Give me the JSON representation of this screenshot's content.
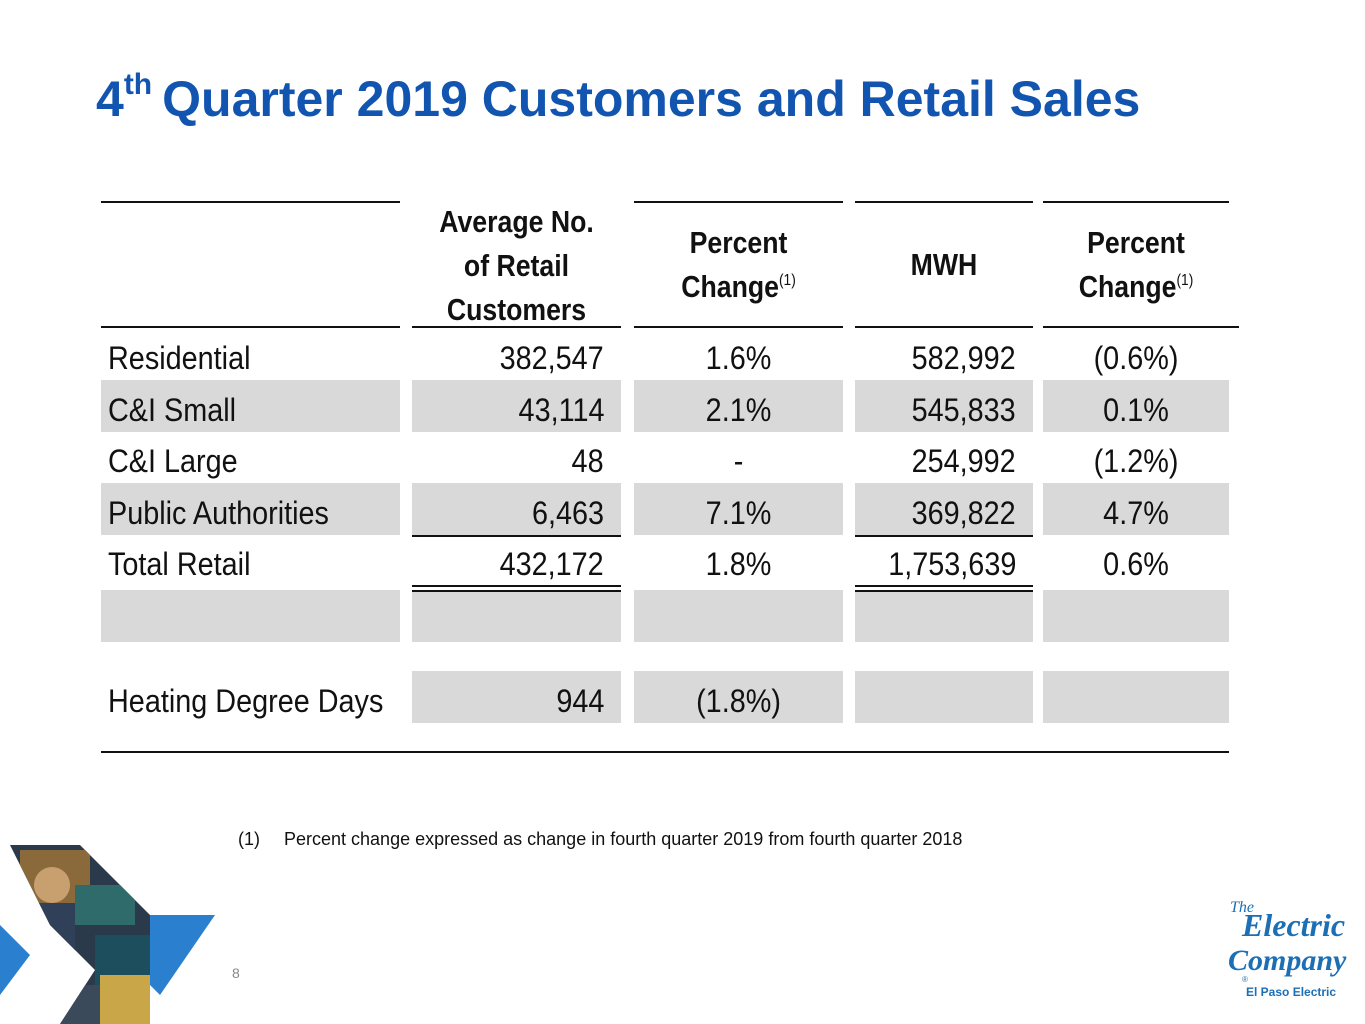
{
  "title": {
    "sup": "th",
    "number": "4",
    "text": "Quarter 2019 Customers and Retail Sales"
  },
  "headers": {
    "customers": [
      "Average No.",
      "of Retail",
      "Customers"
    ],
    "pct1": [
      "Percent",
      "Change"
    ],
    "pct1_note": "(1)",
    "mwh": "MWH",
    "pct2": [
      "Percent",
      "Change"
    ],
    "pct2_note": "(1)"
  },
  "rows": [
    {
      "label": "Residential",
      "customers": "382,547",
      "pct1": "1.6%",
      "mwh": "582,992",
      "pct2": "(0.6%)"
    },
    {
      "label": "C&I Small",
      "customers": "43,114",
      "pct1": "2.1%",
      "mwh": "545,833",
      "pct2": "0.1%"
    },
    {
      "label": "C&I Large",
      "customers": "48",
      "pct1": "-",
      "mwh": "254,992",
      "pct2": "(1.2%)"
    },
    {
      "label": "Public Authorities",
      "customers": "6,463",
      "pct1": "7.1%",
      "mwh": "369,822",
      "pct2": "4.7%"
    },
    {
      "label": "Total Retail",
      "customers": "432,172",
      "pct1": "1.8%",
      "mwh": "1,753,639",
      "pct2": "0.6%"
    }
  ],
  "hdd": {
    "label": "Heating Degree Days",
    "customers": "944",
    "pct1": "(1.8%)"
  },
  "footnote": {
    "num": "(1)",
    "text": "Percent change expressed as change in fourth quarter 2019 from fourth quarter 2018"
  },
  "page_number": "8",
  "logo": {
    "line1": "The",
    "line2": "Electric",
    "line3": "Company",
    "reg": "®",
    "company": "El Paso Electric"
  },
  "colors": {
    "title": "#1155b0",
    "shade": "#d9d9d9",
    "logo": "#1d6fb5"
  }
}
